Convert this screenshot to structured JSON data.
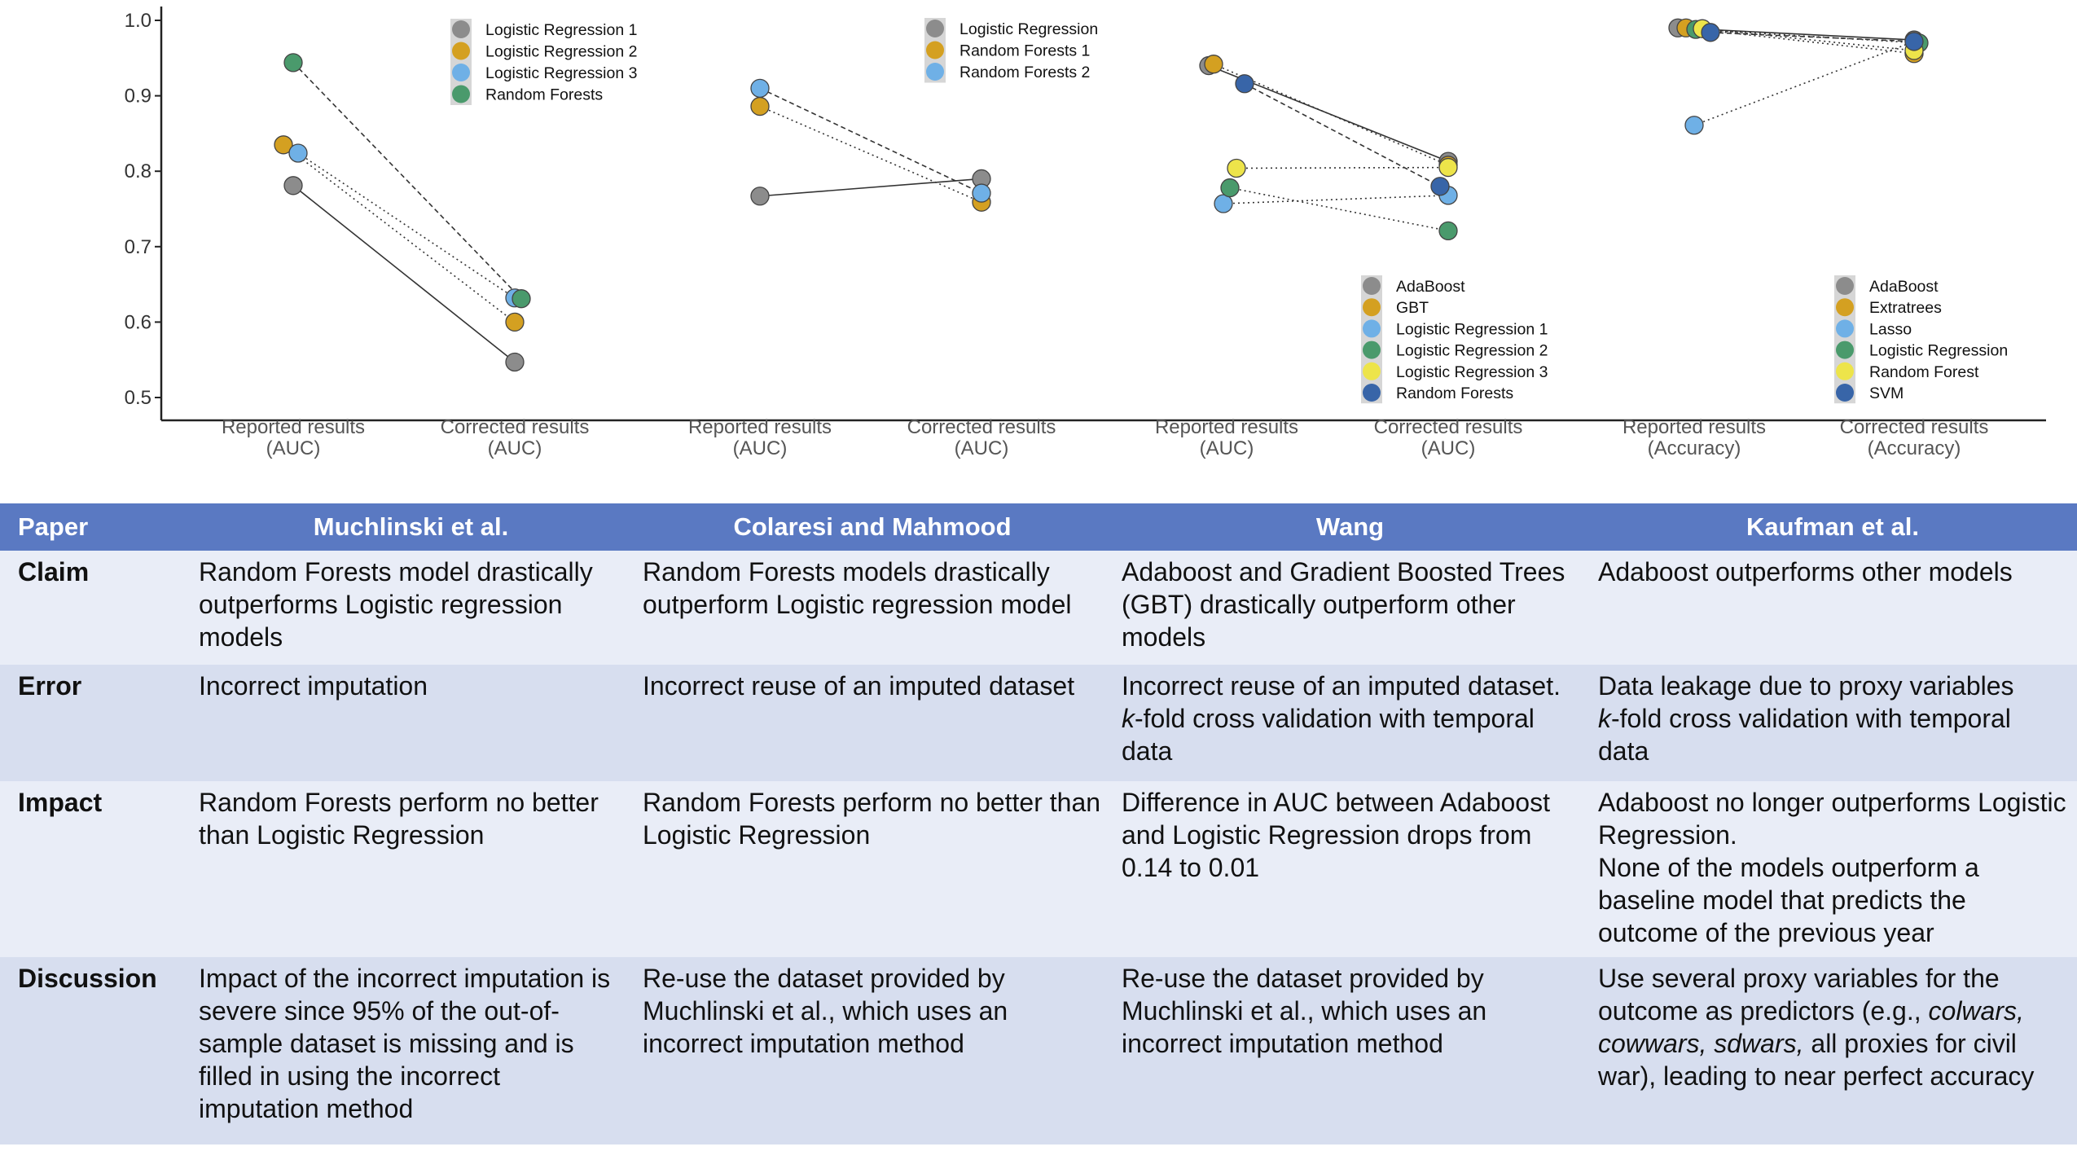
{
  "chart_data": {
    "type": "scatter",
    "ylim": [
      0.5,
      1.0
    ],
    "yticks": [
      "0.5",
      "0.6",
      "0.7",
      "0.8",
      "0.9",
      "1.0"
    ],
    "panels": [
      {
        "xlabels": [
          [
            "Reported results",
            "(AUC)"
          ],
          [
            "Corrected results",
            "(AUC)"
          ]
        ],
        "legend": [
          "Logistic Regression 1",
          "Logistic Regression 2",
          "Logistic Regression 3",
          "Random Forests"
        ],
        "series": [
          {
            "name": "Logistic Regression 1",
            "color": "#8c8c8c",
            "reported": 0.781,
            "corrected": 0.547,
            "style": "solid"
          },
          {
            "name": "Logistic Regression 2",
            "color": "#d4a021",
            "reported": 0.835,
            "corrected": 0.6,
            "style": "dotted"
          },
          {
            "name": "Logistic Regression 3",
            "color": "#6fb0e6",
            "reported": 0.824,
            "corrected": 0.632,
            "style": "dotted"
          },
          {
            "name": "Random Forests",
            "color": "#4a9a6c",
            "reported": 0.944,
            "corrected": 0.631,
            "style": "dashed"
          }
        ]
      },
      {
        "xlabels": [
          [
            "Reported results",
            "(AUC)"
          ],
          [
            "Corrected results",
            "(AUC)"
          ]
        ],
        "legend": [
          "Logistic Regression",
          "Random Forests 1",
          "Random Forests 2"
        ],
        "series": [
          {
            "name": "Logistic Regression",
            "color": "#8c8c8c",
            "reported": 0.767,
            "corrected": 0.79,
            "style": "solid"
          },
          {
            "name": "Random Forests 1",
            "color": "#d4a021",
            "reported": 0.886,
            "corrected": 0.759,
            "style": "dotted"
          },
          {
            "name": "Random Forests 2",
            "color": "#6fb0e6",
            "reported": 0.91,
            "corrected": 0.771,
            "style": "dashed"
          }
        ]
      },
      {
        "xlabels": [
          [
            "Reported results",
            "(AUC)"
          ],
          [
            "Corrected results",
            "(AUC)"
          ]
        ],
        "legend": [
          "AdaBoost",
          "GBT",
          "Logistic Regression 1",
          "Logistic Regression 2",
          "Logistic Regression 3",
          "Random Forests"
        ],
        "series": [
          {
            "name": "AdaBoost",
            "color": "#8c8c8c",
            "reported": 0.94,
            "corrected": 0.813,
            "style": "solid"
          },
          {
            "name": "GBT",
            "color": "#d4a021",
            "reported": 0.942,
            "corrected": 0.808,
            "style": "dotted"
          },
          {
            "name": "Logistic Regression 1",
            "color": "#6fb0e6",
            "reported": 0.757,
            "corrected": 0.768,
            "style": "dotted"
          },
          {
            "name": "Logistic Regression 2",
            "color": "#4a9a6c",
            "reported": 0.778,
            "corrected": 0.721,
            "style": "dotted"
          },
          {
            "name": "Logistic Regression 3",
            "color": "#ede44a",
            "reported": 0.804,
            "corrected": 0.805,
            "style": "dotted"
          },
          {
            "name": "Random Forests",
            "color": "#3865a8",
            "reported": 0.916,
            "corrected": 0.78,
            "style": "dashed"
          }
        ]
      },
      {
        "xlabels": [
          [
            "Reported results",
            "(Accuracy)"
          ],
          [
            "Corrected results",
            "(Accuracy)"
          ]
        ],
        "legend": [
          "AdaBoost",
          "Extratrees",
          "Lasso",
          "Logistic Regression",
          "Random Forest",
          "SVM"
        ],
        "series": [
          {
            "name": "AdaBoost",
            "color": "#8c8c8c",
            "reported": 0.99,
            "corrected": 0.974,
            "style": "solid"
          },
          {
            "name": "Extratrees",
            "color": "#d4a021",
            "reported": 0.99,
            "corrected": 0.956,
            "style": "dotted"
          },
          {
            "name": "Lasso",
            "color": "#6fb0e6",
            "reported": 0.861,
            "corrected": 0.972,
            "style": "dotted"
          },
          {
            "name": "Logistic Regression",
            "color": "#4a9a6c",
            "reported": 0.988,
            "corrected": 0.97,
            "style": "dotted"
          },
          {
            "name": "Random Forest",
            "color": "#ede44a",
            "reported": 0.989,
            "corrected": 0.96,
            "style": "dotted"
          },
          {
            "name": "SVM",
            "color": "#3865a8",
            "reported": 0.984,
            "corrected": 0.972,
            "style": "dashed"
          }
        ]
      }
    ]
  },
  "table": {
    "headers": [
      "Paper",
      "Muchlinski et al.",
      "Colaresi and Mahmood",
      "Wang",
      "Kaufman et al."
    ],
    "rows": [
      {
        "label": "Claim",
        "cells": [
          "Random Forests model drastically outperforms Logistic regression models",
          "Random Forests models drastically outperform Logistic regression model",
          "Adaboost and Gradient Boosted Trees (GBT) drastically outperform other models",
          "Adaboost outperforms other models"
        ]
      },
      {
        "label": "Error",
        "cells": [
          "Incorrect imputation",
          "Incorrect reuse of an imputed dataset",
          {
            "a": "Incorrect reuse of an imputed dataset. ",
            "b": "k",
            "c": "-fold cross validation with temporal data"
          },
          {
            "a": "Data leakage due to proxy variables",
            "b": "k",
            "c": "-fold cross validation with temporal data"
          }
        ]
      },
      {
        "label": "Impact",
        "cells": [
          "Random Forests perform no better than Logistic Regression",
          "Random Forests perform no better than Logistic Regression",
          "Difference in AUC between Adaboost and Logistic Regression drops from 0.14 to 0.01",
          {
            "p1": "Adaboost no longer outperforms Logistic Regression.",
            "p2": "None of the models outperform a baseline model that predicts the outcome of the previous year"
          }
        ]
      },
      {
        "label": "Discussion",
        "cells": [
          "Impact of the incorrect imputation is severe since 95% of the out-of-sample dataset is missing and is filled in using the incorrect imputation method",
          "Re-use the dataset provided by Muchlinski et al., which uses an incorrect imputation method",
          "Re-use the dataset provided by Muchlinski et al., which uses an incorrect imputation method",
          {
            "a": "Use several proxy variables for the outcome as predictors (e.g., ",
            "b": "colwars, cowwars, sdwars,",
            "c": " all proxies for civil war), leading to near perfect accuracy"
          }
        ]
      }
    ]
  }
}
